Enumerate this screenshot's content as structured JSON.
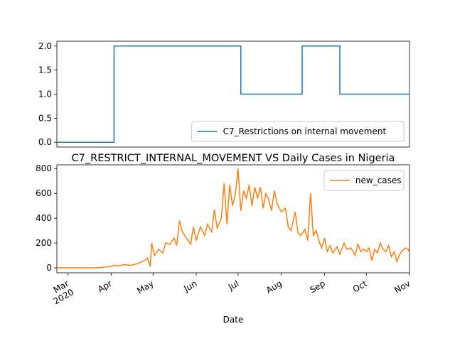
{
  "chart_data": [
    {
      "type": "line",
      "legend": "lower right",
      "x": [
        -8,
        33,
        33,
        124,
        124,
        168,
        168,
        195,
        195,
        245
      ],
      "series": [
        {
          "name": "C7_Restrictions on internal movement",
          "color": "#1f77b4",
          "values": [
            0,
            0,
            2,
            2,
            1,
            1,
            2,
            2,
            1,
            1
          ]
        }
      ],
      "xlim": [
        -8,
        245
      ],
      "ylim": [
        -0.1,
        2.1
      ],
      "yticks": [
        {
          "value": 0,
          "label": "0.0"
        },
        {
          "value": 0.5,
          "label": "0.5"
        },
        {
          "value": 1,
          "label": "1.0"
        },
        {
          "value": 1.5,
          "label": "1.5"
        },
        {
          "value": 2,
          "label": "2.0"
        }
      ]
    },
    {
      "type": "line",
      "title": "C7_RESTRICT_INTERNAL_MOVEMENT VS Daily Cases in Nigeria",
      "xlabel": "Date",
      "legend": "upper right",
      "x": [
        -8,
        20,
        25,
        30,
        33,
        36,
        40,
        45,
        50,
        55,
        57,
        59,
        60,
        62,
        65,
        68,
        70,
        73,
        76,
        78,
        80,
        82,
        85,
        88,
        90,
        92,
        95,
        98,
        100,
        103,
        105,
        107,
        110,
        112,
        114,
        116,
        118,
        120,
        122,
        124,
        126,
        128,
        130,
        132,
        134,
        136,
        138,
        140,
        142,
        144,
        146,
        148,
        150,
        153,
        156,
        158,
        160,
        163,
        165,
        167,
        170,
        172,
        174,
        176,
        178,
        180,
        182,
        184,
        186,
        188,
        190,
        193,
        195,
        198,
        200,
        203,
        206,
        208,
        210,
        212,
        214,
        216,
        218,
        220,
        222,
        224,
        226,
        228,
        230,
        232,
        234,
        236,
        238,
        240,
        242,
        244,
        245
      ],
      "series": [
        {
          "name": "new_cases",
          "color": "#ff7f0e",
          "values": [
            0,
            0,
            5,
            10,
            20,
            15,
            25,
            20,
            35,
            60,
            80,
            10,
            200,
            100,
            150,
            120,
            200,
            190,
            240,
            180,
            380,
            290,
            240,
            190,
            330,
            220,
            330,
            260,
            350,
            290,
            470,
            320,
            400,
            680,
            350,
            670,
            500,
            590,
            800,
            460,
            620,
            560,
            670,
            500,
            650,
            560,
            650,
            480,
            600,
            550,
            460,
            620,
            520,
            450,
            480,
            330,
            300,
            450,
            280,
            260,
            310,
            220,
            600,
            260,
            300,
            220,
            160,
            240,
            130,
            180,
            120,
            170,
            110,
            200,
            150,
            160,
            100,
            190,
            130,
            150,
            130,
            160,
            60,
            150,
            120,
            200,
            150,
            130,
            180,
            90,
            130,
            50,
            110,
            140,
            160,
            150,
            120
          ]
        }
      ],
      "xlim": [
        -8,
        245
      ],
      "xticks": [
        {
          "value": 0,
          "label": "Mar\n2020"
        },
        {
          "value": 31,
          "label": "Apr"
        },
        {
          "value": 61,
          "label": "May"
        },
        {
          "value": 92,
          "label": "Jun"
        },
        {
          "value": 122,
          "label": "Jul"
        },
        {
          "value": 153,
          "label": "Aug"
        },
        {
          "value": 184,
          "label": "Sep"
        },
        {
          "value": 214,
          "label": "Oct"
        },
        {
          "value": 245,
          "label": "Nov"
        }
      ],
      "ylim": [
        -40,
        830
      ],
      "yticks": [
        0,
        200,
        400,
        600,
        800
      ]
    }
  ]
}
